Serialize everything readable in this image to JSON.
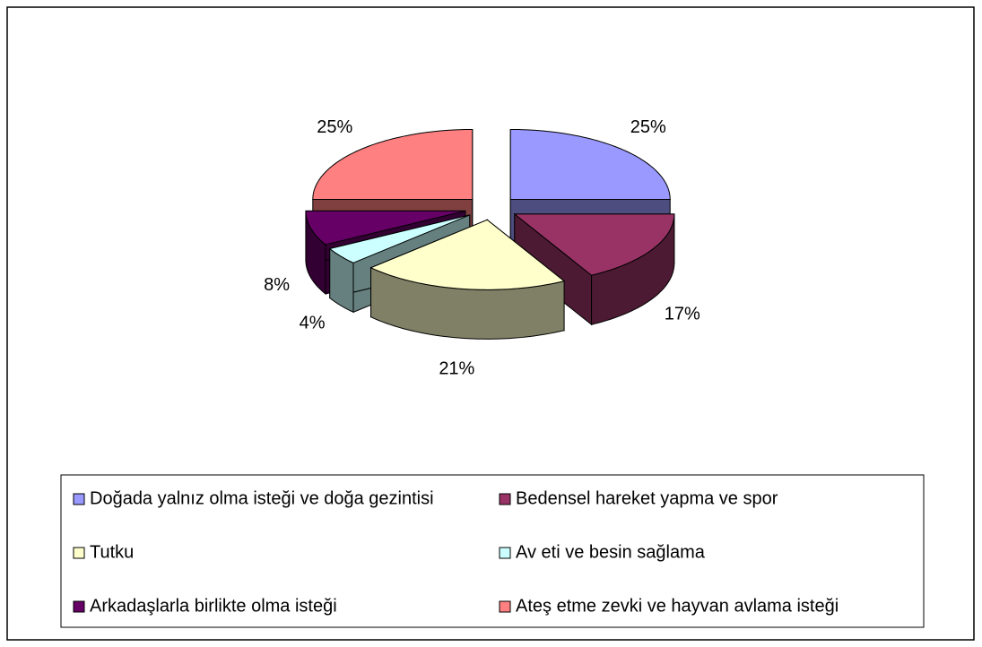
{
  "chart_data": {
    "type": "pie",
    "categories": [
      "Doğada yalnız olma isteği ve doğa gezintisi",
      "Bedensel hareket yapma ve spor",
      "Tutku",
      "Av eti ve besin sağlama",
      "Arkadaşlarla birlikte olma isteği",
      "Ateş etme zevki ve hayvan avlama isteği"
    ],
    "values": [
      25,
      17,
      21,
      4,
      8,
      25
    ],
    "value_labels": [
      "25%",
      "17%",
      "21%",
      "4%",
      "8%",
      "25%"
    ],
    "colors": [
      "#9999ff",
      "#993366",
      "#ffffcc",
      "#ccffff",
      "#660066",
      "#ff8080"
    ],
    "legend": "bottom"
  }
}
